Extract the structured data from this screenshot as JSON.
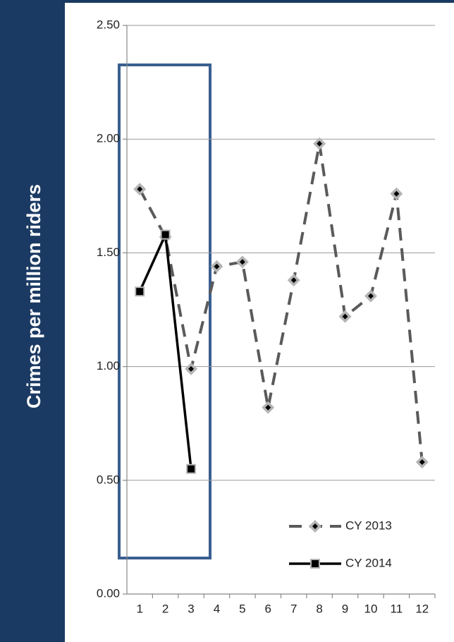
{
  "chart_data": {
    "type": "line",
    "y_axis_label": "Crimes per million riders",
    "categories": [
      "1",
      "2",
      "3",
      "4",
      "5",
      "6",
      "7",
      "8",
      "9",
      "10",
      "11",
      "12"
    ],
    "series": [
      {
        "name": "CY 2013",
        "color": "#5a5a5a",
        "dash": true,
        "marker": "diamond",
        "values": [
          1.78,
          1.57,
          0.99,
          1.44,
          1.46,
          0.82,
          1.38,
          1.98,
          1.22,
          1.31,
          1.76,
          0.58
        ]
      },
      {
        "name": "CY 2014",
        "color": "#000000",
        "dash": false,
        "marker": "square",
        "values": [
          1.33,
          1.58,
          0.55,
          null,
          null,
          null,
          null,
          null,
          null,
          null,
          null,
          null
        ]
      }
    ],
    "ylim": [
      0,
      2.5
    ],
    "yticks": [
      {
        "value": 0,
        "label": "0.00"
      },
      {
        "value": 0.5,
        "label": "0.50"
      },
      {
        "value": 1,
        "label": "1.00"
      },
      {
        "value": 1.5,
        "label": "1.50"
      },
      {
        "value": 2,
        "label": "2.00"
      },
      {
        "value": 2.5,
        "label": "2.50"
      }
    ],
    "grid": true,
    "legend": "lower right"
  }
}
